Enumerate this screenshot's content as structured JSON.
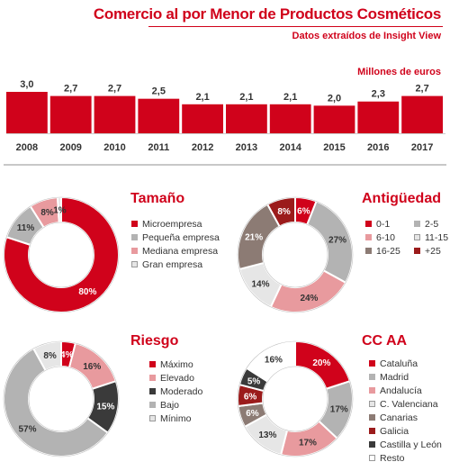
{
  "header": {
    "title": "Comercio al por Menor de Productos Cosméticos",
    "subtitle": "Datos extraídos de Insight View"
  },
  "colors": {
    "brand": "#d0021b",
    "bar": "#d0021b",
    "text": "#333333"
  },
  "chart_data": [
    {
      "type": "bar",
      "unit_label": "Millones de euros",
      "categories": [
        "2008",
        "2009",
        "2010",
        "2011",
        "2012",
        "2013",
        "2014",
        "2015",
        "2016",
        "2017"
      ],
      "values": [
        3.0,
        2.7,
        2.7,
        2.5,
        2.1,
        2.1,
        2.1,
        2.0,
        2.3,
        2.7
      ],
      "value_labels": [
        "3,0",
        "2,7",
        "2,7",
        "2,5",
        "2,1",
        "2,1",
        "2,1",
        "2,0",
        "2,3",
        "2,7"
      ],
      "ylim": [
        0,
        3.0
      ],
      "grid": false
    },
    {
      "type": "pie",
      "donut": true,
      "title": "Tamaño",
      "legend_position": "right",
      "legend_columns": 1,
      "slices": [
        {
          "name": "Microempresa",
          "value": 80,
          "label": "80%",
          "color": "#d0021b",
          "label_color": "#ffffff"
        },
        {
          "name": "Pequeña empresa",
          "value": 11,
          "label": "11%",
          "color": "#b3b3b3",
          "label_color": "#333333"
        },
        {
          "name": "Mediana empresa",
          "value": 8,
          "label": "8%",
          "color": "#e89a9e",
          "label_color": "#333333"
        },
        {
          "name": "Gran empresa",
          "value": 1,
          "label": "1%",
          "color": "#e6e6e6",
          "label_color": "#333333"
        }
      ]
    },
    {
      "type": "pie",
      "donut": true,
      "title": "Antigüedad",
      "legend_position": "right",
      "legend_columns": 2,
      "slices": [
        {
          "name": "0-1",
          "value": 6,
          "label": "6%",
          "color": "#d0021b",
          "label_color": "#ffffff"
        },
        {
          "name": "2-5",
          "value": 27,
          "label": "27%",
          "color": "#b3b3b3",
          "label_color": "#333333"
        },
        {
          "name": "6-10",
          "value": 24,
          "label": "24%",
          "color": "#e89a9e",
          "label_color": "#333333"
        },
        {
          "name": "11-15",
          "value": 14,
          "label": "14%",
          "color": "#e6e6e6",
          "label_color": "#333333"
        },
        {
          "name": "16-25",
          "value": 21,
          "label": "21%",
          "color": "#8c7b74",
          "label_color": "#ffffff"
        },
        {
          "name": "+25",
          "value": 8,
          "label": "8%",
          "color": "#9b1b1b",
          "label_color": "#ffffff"
        }
      ]
    },
    {
      "type": "pie",
      "donut": true,
      "title": "Riesgo",
      "legend_position": "right",
      "legend_columns": 1,
      "slices": [
        {
          "name": "Máximo",
          "value": 4,
          "label": "4%",
          "color": "#d0021b",
          "label_color": "#ffffff"
        },
        {
          "name": "Elevado",
          "value": 16,
          "label": "16%",
          "color": "#e89a9e",
          "label_color": "#333333"
        },
        {
          "name": "Moderado",
          "value": 15,
          "label": "15%",
          "color": "#3a3a3a",
          "label_color": "#ffffff"
        },
        {
          "name": "Bajo",
          "value": 57,
          "label": "57%",
          "color": "#b3b3b3",
          "label_color": "#333333"
        },
        {
          "name": "Mínimo",
          "value": 8,
          "label": "8%",
          "color": "#e6e6e6",
          "label_color": "#333333"
        }
      ]
    },
    {
      "type": "pie",
      "donut": true,
      "title": "CC AA",
      "legend_position": "right",
      "legend_columns": 1,
      "slices": [
        {
          "name": "Cataluña",
          "value": 20,
          "label": "20%",
          "color": "#d0021b",
          "label_color": "#ffffff"
        },
        {
          "name": "Madrid",
          "value": 17,
          "label": "17%",
          "color": "#b3b3b3",
          "label_color": "#333333"
        },
        {
          "name": "Andalucía",
          "value": 17,
          "label": "17%",
          "color": "#e89a9e",
          "label_color": "#333333"
        },
        {
          "name": "C. Valenciana",
          "value": 13,
          "label": "13%",
          "color": "#e6e6e6",
          "label_color": "#333333"
        },
        {
          "name": "Canarias",
          "value": 6,
          "label": "6%",
          "color": "#8c7b74",
          "label_color": "#ffffff"
        },
        {
          "name": "Galicia",
          "value": 6,
          "label": "6%",
          "color": "#9b1b1b",
          "label_color": "#ffffff"
        },
        {
          "name": "Castilla y León",
          "value": 5,
          "label": "5%",
          "color": "#3a3a3a",
          "label_color": "#ffffff"
        },
        {
          "name": "Resto",
          "value": 16,
          "label": "16%",
          "color": "#ffffff",
          "label_color": "#333333"
        }
      ]
    }
  ]
}
